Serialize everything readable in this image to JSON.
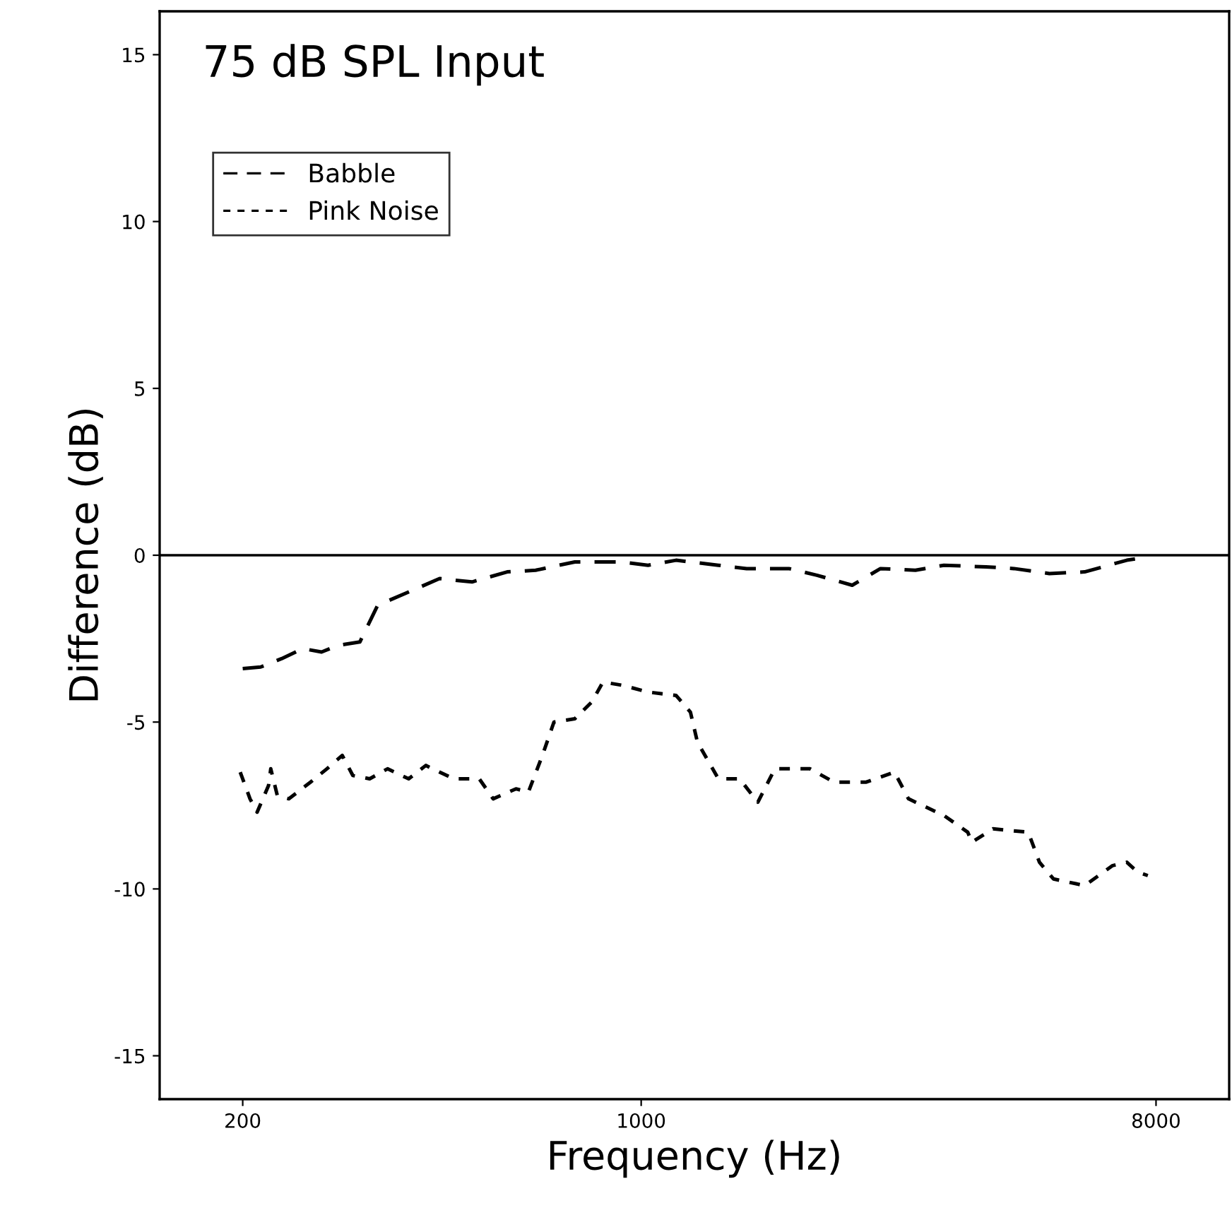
{
  "chart_data": {
    "type": "line",
    "title": "75 dB SPL Input",
    "xlabel": "Frequency (Hz)",
    "ylabel": "Difference (dB)",
    "log": "x",
    "xlim": [
      143,
      10750
    ],
    "ylim": [
      -16.3,
      16.3
    ],
    "xticks": [
      200,
      1000,
      8000
    ],
    "yticks": [
      -15,
      -10,
      -5,
      0,
      5,
      10,
      15
    ],
    "grid": false,
    "legend": "top left",
    "ref_lines": [
      {
        "axis": "y",
        "value": 0,
        "color": "#000000",
        "line_style": "solid"
      }
    ],
    "series": [
      {
        "name": "Babble",
        "color": "#000000",
        "line_style": "dashed",
        "x": [
          200,
          215,
          234,
          255,
          275,
          294,
          321,
          345,
          391,
          443,
          505,
          582,
          653,
          765,
          918,
          1028,
          1151,
          1366,
          1531,
          1816,
          2034,
          2345,
          2629,
          3027,
          3396,
          4026,
          4508,
          5200,
          5996,
          7110,
          7740
        ],
        "values": [
          -3.4,
          -3.35,
          -3.1,
          -2.8,
          -2.9,
          -2.7,
          -2.6,
          -1.5,
          -1.1,
          -0.7,
          -0.8,
          -0.5,
          -0.45,
          -0.2,
          -0.2,
          -0.3,
          -0.15,
          -0.3,
          -0.4,
          -0.4,
          -0.6,
          -0.9,
          -0.4,
          -0.45,
          -0.3,
          -0.35,
          -0.4,
          -0.55,
          -0.5,
          -0.15,
          -0.05
        ]
      },
      {
        "name": "Pink Noise",
        "color": "#000000",
        "line_style": "dotted",
        "x": [
          198,
          206,
          212,
          222,
          224,
          230,
          241,
          263,
          281,
          299,
          312,
          334,
          359,
          391,
          419,
          443,
          469,
          520,
          550,
          603,
          634,
          671,
          703,
          765,
          819,
          857,
          928,
          1028,
          1151,
          1220,
          1255,
          1366,
          1488,
          1602,
          1716,
          1978,
          2178,
          2482,
          2782,
          2944,
          3396,
          3740,
          3802,
          4140,
          4774,
          4996,
          5286,
          5996,
          6714,
          7110,
          7434,
          7740
        ],
        "values": [
          -6.5,
          -7.3,
          -7.7,
          -6.9,
          -6.4,
          -7.2,
          -7.3,
          -6.8,
          -6.4,
          -6.0,
          -6.6,
          -6.7,
          -6.4,
          -6.7,
          -6.3,
          -6.5,
          -6.7,
          -6.7,
          -7.3,
          -7.0,
          -7.1,
          -6.0,
          -5.0,
          -4.9,
          -4.4,
          -3.8,
          -3.9,
          -4.1,
          -4.2,
          -4.7,
          -5.6,
          -6.7,
          -6.7,
          -7.4,
          -6.4,
          -6.4,
          -6.8,
          -6.8,
          -6.5,
          -7.3,
          -7.8,
          -8.3,
          -8.6,
          -8.2,
          -8.3,
          -9.2,
          -9.7,
          -9.9,
          -9.3,
          -9.2,
          -9.5,
          -9.6
        ]
      }
    ]
  }
}
